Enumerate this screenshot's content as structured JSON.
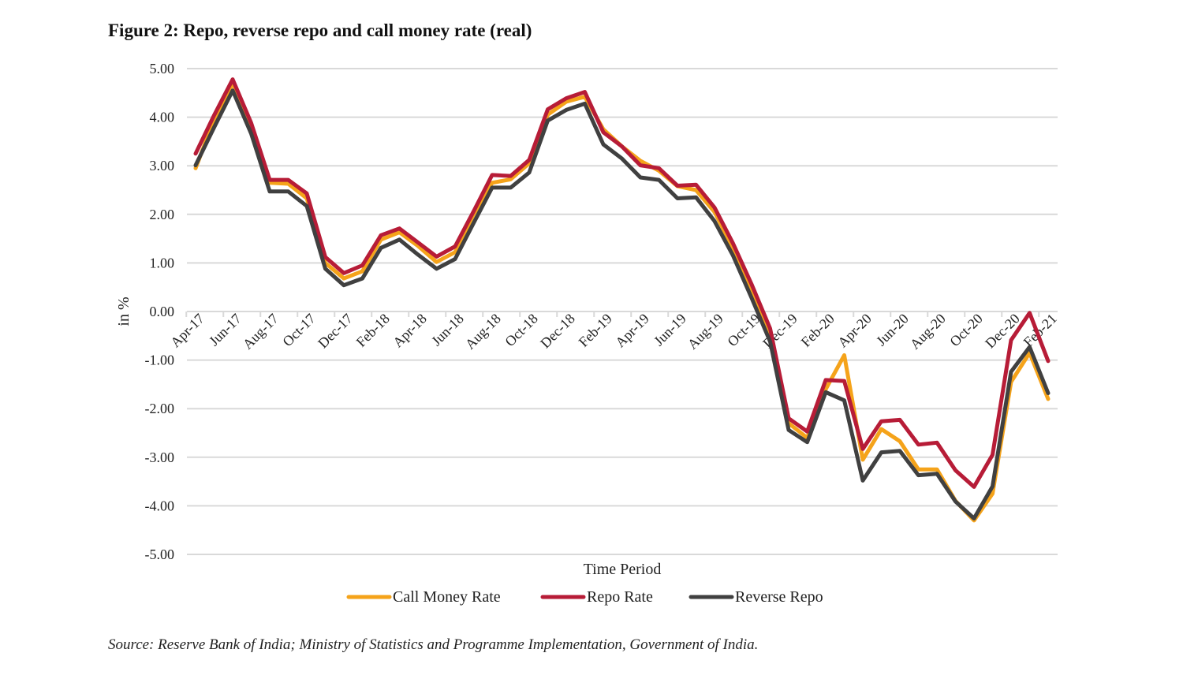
{
  "title": "Figure 2: Repo, reverse repo and call money rate (real)",
  "source": "Source: Reserve Bank of India; Ministry of Statistics and Programme Implementation, Government of India.",
  "chart_data": {
    "type": "line",
    "title": "Figure 2: Repo, reverse repo and call money rate (real)",
    "xlabel": "Time Period",
    "ylabel": "in %",
    "ylim": [
      -5,
      5
    ],
    "yticks": [
      "5.00",
      "4.00",
      "3.00",
      "2.00",
      "1.00",
      "0.00",
      "-1.00",
      "-2.00",
      "-3.00",
      "-4.00",
      "-5.00"
    ],
    "grid": true,
    "legend": "bottom",
    "x": [
      "Apr-17",
      "May-17",
      "Jun-17",
      "Jul-17",
      "Aug-17",
      "Sep-17",
      "Oct-17",
      "Nov-17",
      "Dec-17",
      "Jan-18",
      "Feb-18",
      "Mar-18",
      "Apr-18",
      "May-18",
      "Jun-18",
      "Jul-18",
      "Aug-18",
      "Sep-18",
      "Oct-18",
      "Nov-18",
      "Dec-18",
      "Jan-19",
      "Feb-19",
      "Mar-19",
      "Apr-19",
      "May-19",
      "Jun-19",
      "Jul-19",
      "Aug-19",
      "Sep-19",
      "Oct-19",
      "Nov-19",
      "Dec-19",
      "Jan-20",
      "Feb-20",
      "Mar-20",
      "Apr-20",
      "May-20",
      "Jun-20",
      "Jul-20",
      "Aug-20",
      "Sep-20",
      "Oct-20",
      "Nov-20",
      "Dec-20",
      "Jan-21",
      "Feb-21"
    ],
    "xtick_labels": [
      "Apr-17",
      "Jun-17",
      "Aug-17",
      "Oct-17",
      "Dec-17",
      "Feb-18",
      "Apr-18",
      "Jun-18",
      "Aug-18",
      "Oct-18",
      "Dec-18",
      "Feb-19",
      "Apr-19",
      "Jun-19",
      "Aug-19",
      "Oct-19",
      "Dec-19",
      "Feb-20",
      "Apr-20",
      "Jun-20",
      "Aug-20",
      "Oct-20",
      "Dec-20",
      "Feb-21"
    ],
    "series": [
      {
        "name": "Call Money Rate",
        "color": "#F5A31A",
        "values": [
          2.95,
          3.95,
          4.7,
          3.85,
          2.65,
          2.63,
          2.33,
          1.0,
          0.68,
          0.83,
          1.48,
          1.63,
          1.35,
          1.02,
          1.22,
          2.0,
          2.65,
          2.72,
          3.05,
          4.05,
          4.32,
          4.42,
          3.75,
          3.4,
          3.1,
          2.9,
          2.58,
          2.5,
          2.05,
          1.3,
          0.45,
          -0.45,
          -2.3,
          -2.6,
          -1.6,
          -0.9,
          -3.05,
          -2.42,
          -2.67,
          -3.25,
          -3.25,
          -3.9,
          -4.3,
          -3.75,
          -1.45,
          -0.85,
          -1.8
        ]
      },
      {
        "name": "Repo Rate",
        "color": "#B71C37",
        "values": [
          3.25,
          4.04,
          4.78,
          3.88,
          2.71,
          2.71,
          2.43,
          1.12,
          0.79,
          0.95,
          1.57,
          1.71,
          1.42,
          1.13,
          1.34,
          2.06,
          2.81,
          2.79,
          3.12,
          4.16,
          4.39,
          4.52,
          3.69,
          3.4,
          3.01,
          2.95,
          2.59,
          2.61,
          2.14,
          1.4,
          0.56,
          -0.35,
          -2.2,
          -2.47,
          -1.41,
          -1.43,
          -2.83,
          -2.26,
          -2.23,
          -2.74,
          -2.7,
          -3.27,
          -3.61,
          -2.95,
          -0.59,
          -0.03,
          -1.02
        ]
      },
      {
        "name": "Reverse Repo",
        "color": "#404040",
        "values": [
          3.01,
          3.79,
          4.55,
          3.66,
          2.47,
          2.47,
          2.17,
          0.88,
          0.54,
          0.68,
          1.31,
          1.48,
          1.17,
          0.88,
          1.08,
          1.82,
          2.55,
          2.55,
          2.86,
          3.93,
          4.15,
          4.28,
          3.44,
          3.15,
          2.76,
          2.71,
          2.33,
          2.35,
          1.86,
          1.15,
          0.28,
          -0.62,
          -2.44,
          -2.69,
          -1.66,
          -1.83,
          -3.48,
          -2.9,
          -2.87,
          -3.37,
          -3.34,
          -3.91,
          -4.26,
          -3.6,
          -1.24,
          -0.73,
          -1.68
        ]
      }
    ]
  }
}
